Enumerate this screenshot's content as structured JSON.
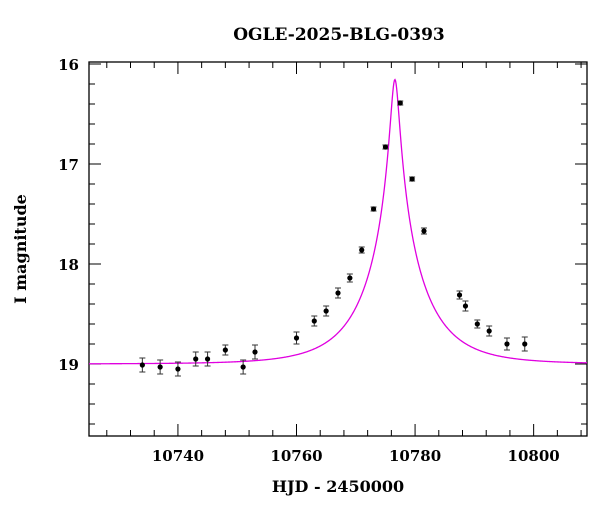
{
  "chart_data": {
    "type": "scatter",
    "title": "OGLE-2025-BLG-0393",
    "xlabel": "HJD - 2450000",
    "ylabel": "I magnitude",
    "xlim": [
      10725,
      10809
    ],
    "ylim": [
      19.72,
      15.98
    ],
    "y_inverted": true,
    "x_ticks": [
      10740,
      10760,
      10780,
      10800
    ],
    "x_tick_labels": [
      "10740",
      "10760",
      "10780",
      "10800"
    ],
    "y_ticks": [
      16,
      17,
      18,
      19
    ],
    "y_tick_labels": [
      "16",
      "17",
      "18",
      "19"
    ],
    "grid": false,
    "legend": "none",
    "colors": {
      "points": "#000000",
      "model": "#e000e0"
    },
    "series": [
      {
        "type": "scatter_errorbar",
        "x": [
          10734,
          10737,
          10740,
          10743,
          10745,
          10748,
          10751,
          10753,
          10760,
          10763,
          10765,
          10767,
          10769,
          10771,
          10773,
          10775,
          10777.5,
          10779.5,
          10781.5,
          10787.5,
          10788.5,
          10790.5,
          10792.5,
          10795.5,
          10798.5
        ],
        "y": [
          19.01,
          19.03,
          19.05,
          18.95,
          18.95,
          18.86,
          19.03,
          18.88,
          18.74,
          18.57,
          18.47,
          18.29,
          18.14,
          17.86,
          17.45,
          16.83,
          16.39,
          17.15,
          17.67,
          18.31,
          18.42,
          18.6,
          18.67,
          18.8,
          18.8
        ],
        "yerr": [
          0.07,
          0.07,
          0.07,
          0.07,
          0.07,
          0.05,
          0.07,
          0.07,
          0.06,
          0.05,
          0.05,
          0.05,
          0.04,
          0.03,
          0.02,
          0.02,
          0.02,
          0.02,
          0.03,
          0.04,
          0.05,
          0.04,
          0.05,
          0.06,
          0.07
        ]
      },
      {
        "type": "model_curve",
        "t0": 10776.6,
        "u0": 0.073,
        "tE": 9.5,
        "baseline_mag": 19.0
      }
    ]
  }
}
